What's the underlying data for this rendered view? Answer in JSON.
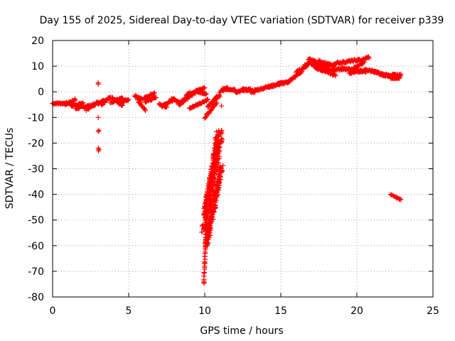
{
  "chart_data": {
    "type": "scatter",
    "title": "Day 155 of 2025, Sidereal Day-to-day VTEC variation (SDTVAR) for receiver p339",
    "xlabel": "GPS time / hours",
    "ylabel": "SDTVAR / TECUs",
    "xlim": [
      0,
      25
    ],
    "ylim": [
      -80,
      20
    ],
    "xticks": [
      0,
      5,
      10,
      15,
      20,
      25
    ],
    "yticks": [
      -80,
      -70,
      -60,
      -50,
      -40,
      -30,
      -20,
      -10,
      0,
      10,
      20
    ],
    "grid": true,
    "marker": "+",
    "series_color": "#ff0000",
    "segments": [
      [
        0.0,
        -4.5,
        1.0,
        -4.5
      ],
      [
        0.8,
        -5.0,
        1.5,
        -3.0
      ],
      [
        1.2,
        -5.5,
        2.0,
        -4.5
      ],
      [
        1.5,
        -6.5,
        2.8,
        -5.0
      ],
      [
        2.2,
        -7.0,
        3.0,
        -4.0
      ],
      [
        3.0,
        -4.5,
        3.4,
        -3.0
      ],
      [
        3.2,
        -5.0,
        3.8,
        -2.0
      ],
      [
        3.8,
        -4.0,
        4.6,
        -2.5
      ],
      [
        3.9,
        -2.5,
        4.6,
        -5.5
      ],
      [
        4.5,
        -4.0,
        5.0,
        -3.0
      ],
      [
        5.4,
        -1.5,
        5.9,
        -3.0
      ],
      [
        5.6,
        -3.5,
        6.1,
        -7.0
      ],
      [
        6.0,
        -2.5,
        6.7,
        -0.5
      ],
      [
        6.1,
        -4.0,
        6.8,
        -2.0
      ],
      [
        7.0,
        -5.0,
        7.5,
        -6.0
      ],
      [
        7.2,
        -5.5,
        8.0,
        -3.0
      ],
      [
        7.8,
        -2.5,
        8.5,
        -4.5
      ],
      [
        8.3,
        -5.0,
        9.2,
        -1.0
      ],
      [
        8.5,
        -3.5,
        9.0,
        -1.5
      ],
      [
        8.8,
        -1.0,
        9.8,
        1.0
      ],
      [
        9.0,
        -6.5,
        10.2,
        -3.0
      ],
      [
        9.3,
        -0.5,
        10.0,
        1.5
      ],
      [
        9.4,
        0.5,
        10.1,
        -1.0
      ],
      [
        10.0,
        -10.0,
        10.8,
        -4.0
      ],
      [
        10.2,
        -6.0,
        10.8,
        -2.0
      ],
      [
        10.6,
        -3.0,
        11.0,
        -1.5
      ],
      [
        11.0,
        0.0,
        11.5,
        1.5
      ],
      [
        11.2,
        1.0,
        12.0,
        1.0
      ],
      [
        12.0,
        0.0,
        13.0,
        1.0
      ],
      [
        12.5,
        1.0,
        13.3,
        0.0
      ],
      [
        13.0,
        0.0,
        14.5,
        2.5
      ],
      [
        14.2,
        2.0,
        15.2,
        3.5
      ],
      [
        14.8,
        3.0,
        15.6,
        4.0
      ],
      [
        15.4,
        3.5,
        16.4,
        8.0
      ],
      [
        16.0,
        7.5,
        16.8,
        10.5
      ],
      [
        16.5,
        10.0,
        17.0,
        12.0
      ],
      [
        16.8,
        13.0,
        18.2,
        9.0
      ],
      [
        17.0,
        11.0,
        18.0,
        8.0
      ],
      [
        17.2,
        9.5,
        18.6,
        6.5
      ],
      [
        17.5,
        12.0,
        18.5,
        10.0
      ],
      [
        18.0,
        8.0,
        19.2,
        9.0
      ],
      [
        18.5,
        11.0,
        20.2,
        12.5
      ],
      [
        19.0,
        9.0,
        20.6,
        8.0
      ],
      [
        19.5,
        7.5,
        20.5,
        8.0
      ],
      [
        19.8,
        9.5,
        20.5,
        11.5
      ],
      [
        20.2,
        12.0,
        20.8,
        13.5
      ],
      [
        20.5,
        8.5,
        21.5,
        7.5
      ],
      [
        21.0,
        8.0,
        21.8,
        6.5
      ],
      [
        21.5,
        7.0,
        22.8,
        5.5
      ],
      [
        21.8,
        6.5,
        22.9,
        6.5
      ],
      [
        22.2,
        5.5,
        22.8,
        5.5
      ]
    ],
    "points": [
      [
        3.0,
        3.5
      ],
      [
        3.0,
        3.0
      ],
      [
        3.0,
        -10.0
      ],
      [
        3.05,
        -15.0
      ],
      [
        3.0,
        -15.5
      ],
      [
        3.0,
        -22.0
      ],
      [
        3.05,
        -22.5
      ],
      [
        3.02,
        -23.0
      ],
      [
        11.1,
        -5.5
      ],
      [
        22.6,
        -41.5
      ],
      [
        22.8,
        -42.0
      ]
    ],
    "plumes": [
      {
        "x_top": 11.0,
        "y_top": -15.0,
        "x_bottom": 10.0,
        "y_bottom": -55.0,
        "width": 0.5
      },
      {
        "x_top": 10.9,
        "y_top": -19.0,
        "x_bottom": 10.05,
        "y_bottom": -48.0,
        "width": 0.35
      },
      {
        "x_top": 11.1,
        "y_top": -29.0,
        "x_bottom": 10.1,
        "y_bottom": -60.0,
        "width": 0.25
      },
      {
        "x_top": 10.15,
        "y_top": -40.0,
        "x_bottom": 9.95,
        "y_bottom": -75.0,
        "width": 0.05
      }
    ],
    "tails": [
      {
        "x0": 22.2,
        "y0": -40.0,
        "x1": 22.9,
        "y1": -42.0
      }
    ]
  }
}
